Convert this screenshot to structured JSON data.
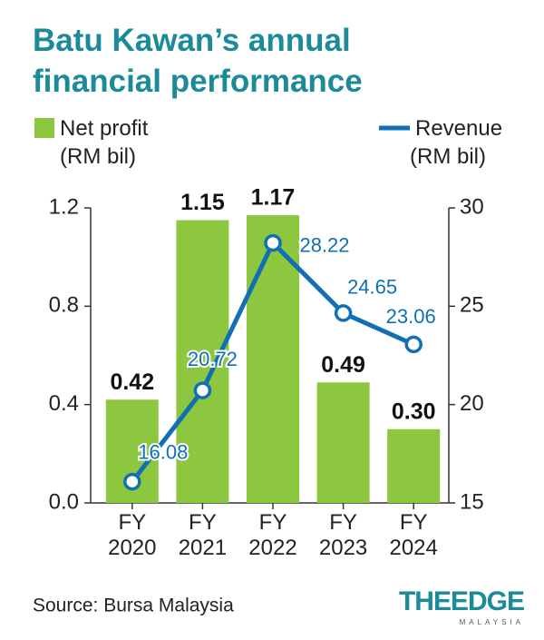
{
  "chart_data": {
    "type": "bar_line",
    "title": "Batu Kawan’s annual financial performance",
    "categories": [
      "FY 2020",
      "FY 2021",
      "FY 2022",
      "FY 2023",
      "FY 2024"
    ],
    "series": [
      {
        "name": "Net profit",
        "unit": "(RM bil)",
        "type": "bar",
        "color": "#8dc63f",
        "values": [
          0.42,
          1.15,
          1.17,
          0.49,
          0.3
        ],
        "value_labels": [
          "0.42",
          "1.15",
          "1.17",
          "0.49",
          "0.30"
        ]
      },
      {
        "name": "Revenue",
        "unit": "(RM bil)",
        "type": "line",
        "axis": "y2",
        "color": "#1170b5",
        "values": [
          16.08,
          20.72,
          28.22,
          24.65,
          23.06
        ]
      }
    ],
    "ylim": [
      0,
      1.2
    ],
    "yticks": [
      {
        "value": 0,
        "label": "0.0"
      },
      0.4,
      0.8,
      1.2
    ],
    "y2lim": [
      15,
      30
    ],
    "y2ticks": [
      15,
      20,
      25,
      30
    ],
    "source": "Source: Bursa Malaysia",
    "logo": "THEEDGE",
    "logo_sub": "MALAYSIA"
  }
}
